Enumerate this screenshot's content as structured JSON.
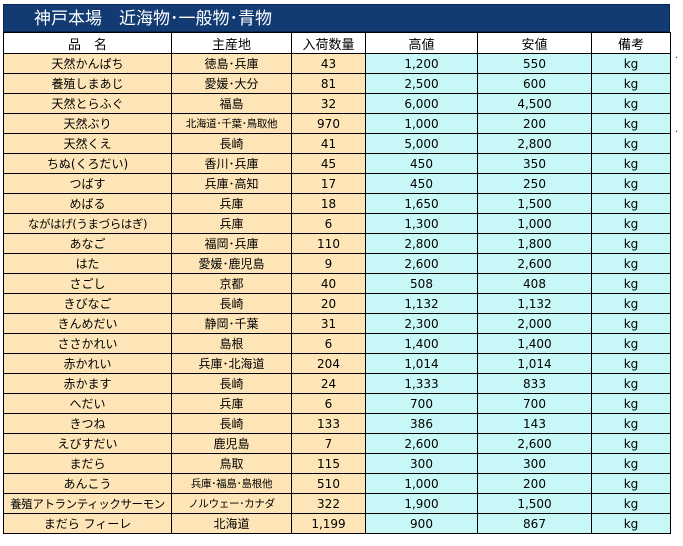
{
  "header": {
    "title": "神戸本場　近海物･一般物･青物"
  },
  "table": {
    "columns": [
      "品　名",
      "主産地",
      "入荷数量",
      "高値",
      "安値",
      "備考"
    ],
    "rows": [
      {
        "name": "天然かんぱち",
        "origin": "徳島･兵庫",
        "qty": "43",
        "high": "1,200",
        "low": "550",
        "unit": "kg"
      },
      {
        "name": "養殖しまあじ",
        "origin": "愛媛･大分",
        "qty": "81",
        "high": "2,500",
        "low": "600",
        "unit": "kg"
      },
      {
        "name": "天然とらふぐ",
        "origin": "福島",
        "qty": "32",
        "high": "6,000",
        "low": "4,500",
        "unit": "kg"
      },
      {
        "name": "天然ぶり",
        "origin": "北海道･千葉･鳥取他",
        "qty": "970",
        "high": "1,000",
        "low": "200",
        "unit": "kg"
      },
      {
        "name": "天然くえ",
        "origin": "長崎",
        "qty": "41",
        "high": "5,000",
        "low": "2,800",
        "unit": "kg"
      },
      {
        "name": "ちぬ(くろだい)",
        "origin": "香川･兵庫",
        "qty": "45",
        "high": "450",
        "low": "350",
        "unit": "kg"
      },
      {
        "name": "つばす",
        "origin": "兵庫･高知",
        "qty": "17",
        "high": "450",
        "low": "250",
        "unit": "kg"
      },
      {
        "name": "めばる",
        "origin": "兵庫",
        "qty": "18",
        "high": "1,650",
        "low": "1,500",
        "unit": "kg"
      },
      {
        "name": "ながはげ(うまづらはぎ)",
        "origin": "兵庫",
        "qty": "6",
        "high": "1,300",
        "low": "1,000",
        "unit": "kg"
      },
      {
        "name": "あなご",
        "origin": "福岡･兵庫",
        "qty": "110",
        "high": "2,800",
        "low": "1,800",
        "unit": "kg"
      },
      {
        "name": "はた",
        "origin": "愛媛･鹿児島",
        "qty": "9",
        "high": "2,600",
        "low": "2,600",
        "unit": "kg"
      },
      {
        "name": "さごし",
        "origin": "京都",
        "qty": "40",
        "high": "508",
        "low": "408",
        "unit": "kg"
      },
      {
        "name": "きびなご",
        "origin": "長崎",
        "qty": "20",
        "high": "1,132",
        "low": "1,132",
        "unit": "kg"
      },
      {
        "name": "きんめだい",
        "origin": "静岡･千葉",
        "qty": "31",
        "high": "2,300",
        "low": "2,000",
        "unit": "kg"
      },
      {
        "name": "ささかれい",
        "origin": "島根",
        "qty": "6",
        "high": "1,400",
        "low": "1,400",
        "unit": "kg"
      },
      {
        "name": "赤かれい",
        "origin": "兵庫･北海道",
        "qty": "204",
        "high": "1,014",
        "low": "1,014",
        "unit": "kg"
      },
      {
        "name": "赤かます",
        "origin": "長崎",
        "qty": "24",
        "high": "1,333",
        "low": "833",
        "unit": "kg"
      },
      {
        "name": "へだい",
        "origin": "兵庫",
        "qty": "6",
        "high": "700",
        "low": "700",
        "unit": "kg"
      },
      {
        "name": "きつね",
        "origin": "長崎",
        "qty": "133",
        "high": "386",
        "low": "143",
        "unit": "kg"
      },
      {
        "name": "えびすだい",
        "origin": "鹿児島",
        "qty": "7",
        "high": "2,600",
        "low": "2,600",
        "unit": "kg"
      },
      {
        "name": "まだら",
        "origin": "鳥取",
        "qty": "115",
        "high": "300",
        "low": "300",
        "unit": "kg"
      },
      {
        "name": "あんこう",
        "origin": "兵庫･福島･島根他",
        "qty": "510",
        "high": "1,000",
        "low": "200",
        "unit": "kg"
      },
      {
        "name": "養殖アトランティックサーモン",
        "origin": "ノルウェー･カナダ",
        "qty": "322",
        "high": "1,900",
        "low": "1,500",
        "unit": "kg"
      },
      {
        "name": "まだら フィーレ",
        "origin": "北海道",
        "qty": "1,199",
        "high": "900",
        "low": "867",
        "unit": "kg"
      }
    ]
  }
}
